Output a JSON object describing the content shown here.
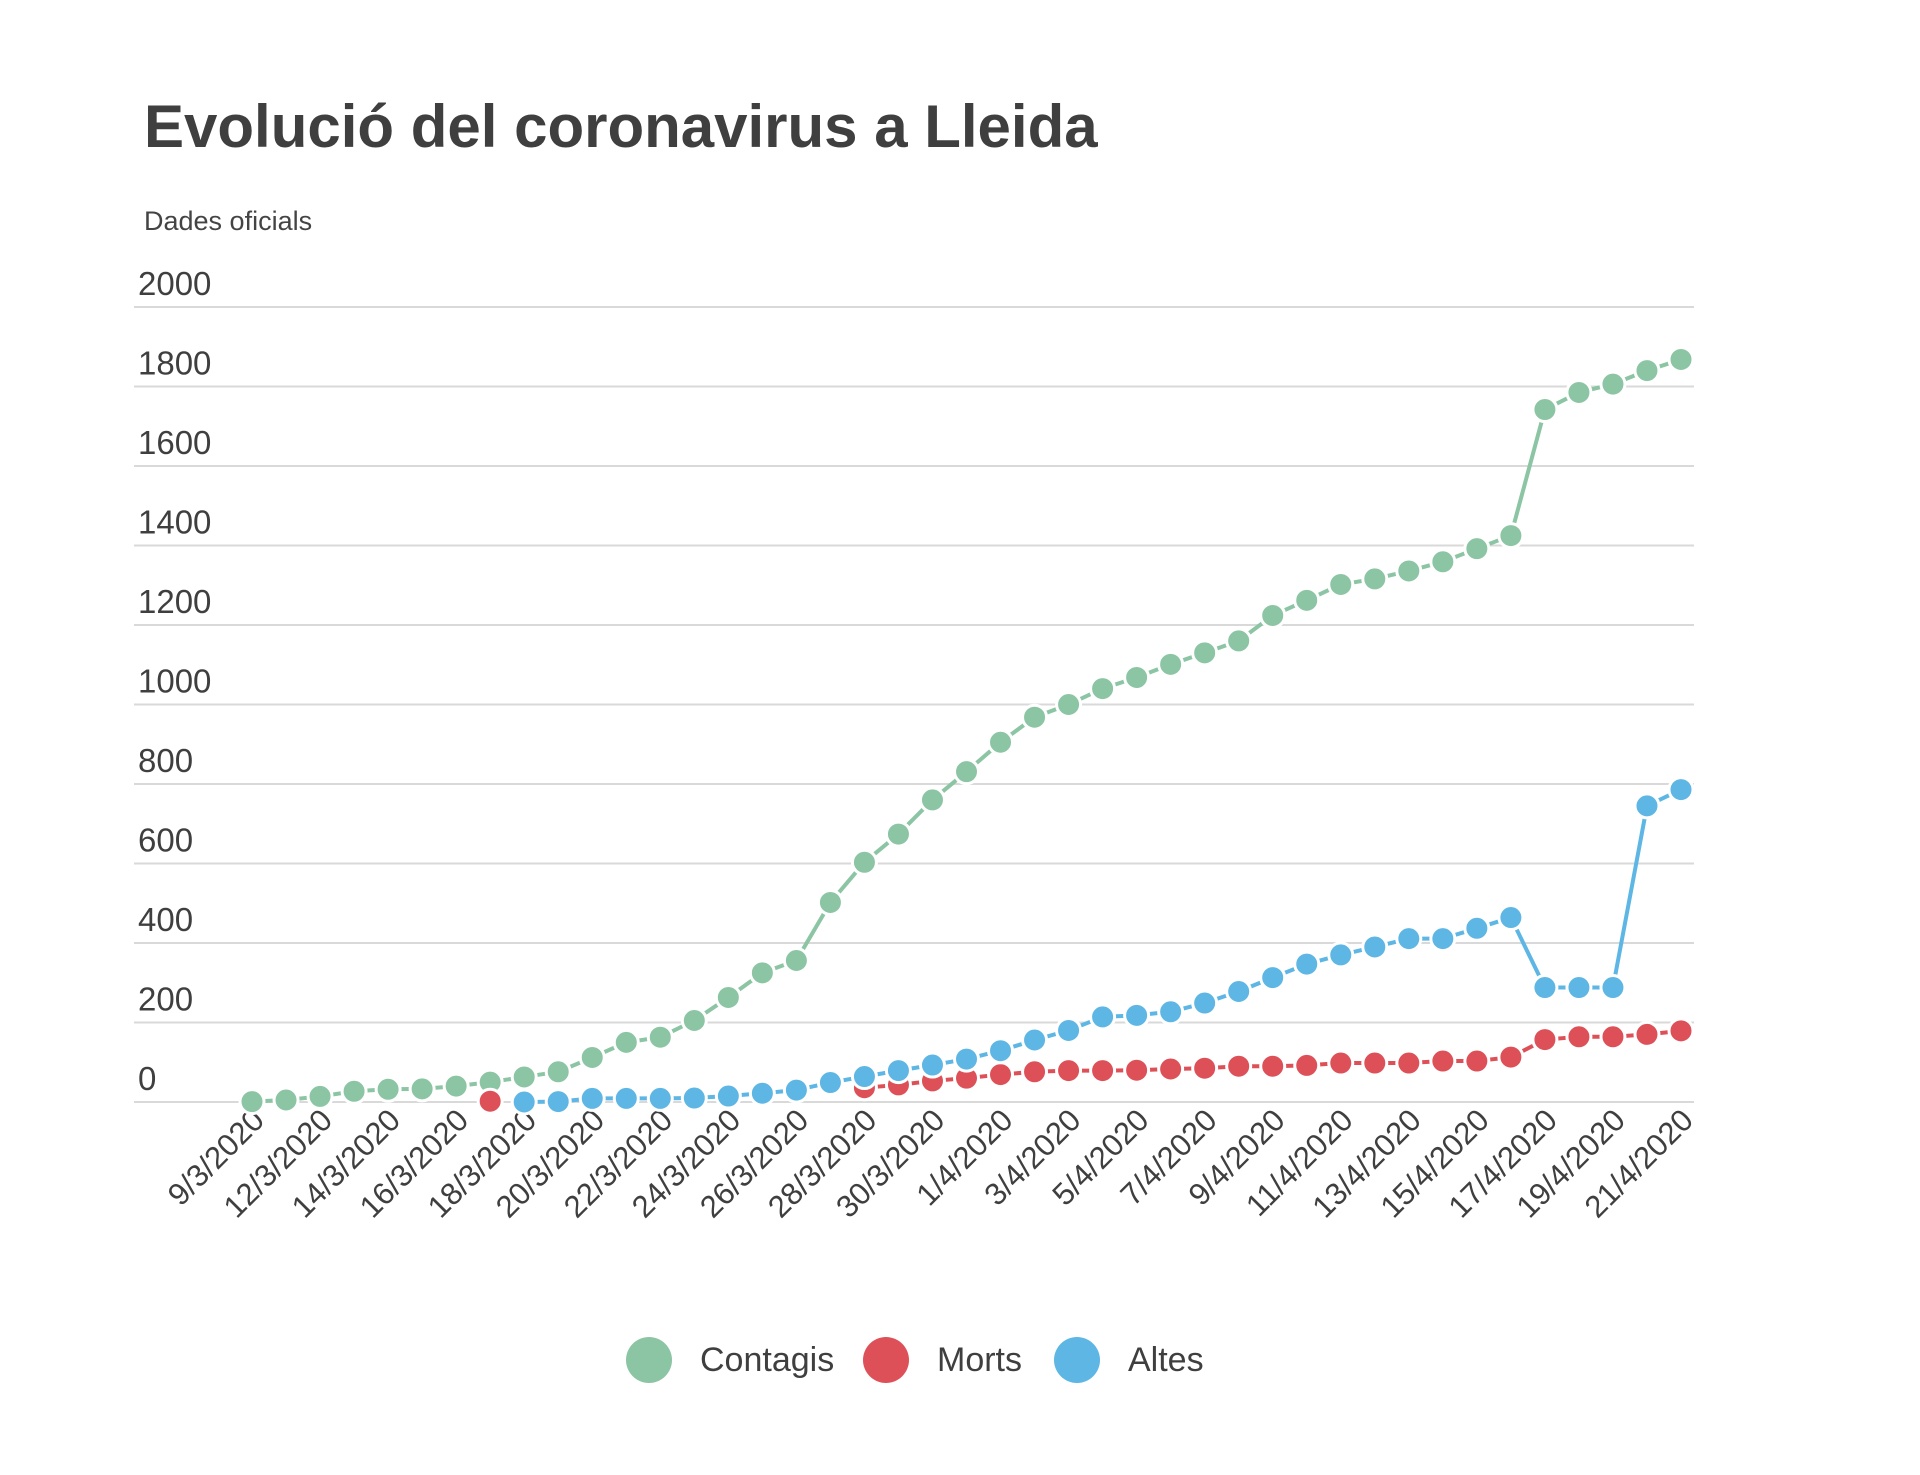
{
  "title": "Evolució del coronavirus a Lleida",
  "subtitle": "Dades oficials",
  "colors": {
    "contagis": "#8cc5a3",
    "morts": "#de5057",
    "altes": "#5eb6e4",
    "grid": "#d9d9d9",
    "text": "#3f3f3f"
  },
  "chart_data": {
    "type": "line",
    "ylim": [
      0,
      2000
    ],
    "y_ticks": [
      "0",
      "200",
      "400",
      "600",
      "800",
      "1000",
      "1200",
      "1400",
      "1600",
      "1800",
      "2000"
    ],
    "x": [
      "9/3/2020",
      "11/3/2020",
      "12/3/2020",
      "13/3/2020",
      "14/3/2020",
      "15/3/2020",
      "16/3/2020",
      "17/3/2020",
      "18/3/2020",
      "19/3/2020",
      "20/3/2020",
      "21/3/2020",
      "22/3/2020",
      "23/3/2020",
      "24/3/2020",
      "25/3/2020",
      "26/3/2020",
      "27/3/2020",
      "28/3/2020",
      "29/3/2020",
      "30/3/2020",
      "31/3/2020",
      "1/4/2020",
      "2/4/2020",
      "3/4/2020",
      "4/4/2020",
      "5/4/2020",
      "6/4/2020",
      "7/4/2020",
      "8/4/2020",
      "9/4/2020",
      "10/4/2020",
      "11/4/2020",
      "12/4/2020",
      "13/4/2020",
      "14/4/2020",
      "15/4/2020",
      "16/4/2020",
      "17/4/2020",
      "18/4/2020",
      "19/4/2020",
      "20/4/2020",
      "21/4/2020"
    ],
    "x_tick_labels": [
      "9/3/2020",
      "12/3/2020",
      "14/3/2020",
      "16/3/2020",
      "18/3/2020",
      "20/3/2020",
      "22/3/2020",
      "24/3/2020",
      "26/3/2020",
      "28/3/2020",
      "30/3/2020",
      "1/4/2020",
      "3/4/2020",
      "5/4/2020",
      "7/4/2020",
      "9/4/2020",
      "11/4/2020",
      "13/4/2020",
      "15/4/2020",
      "17/4/2020",
      "19/4/2020",
      "21/4/2020"
    ],
    "series": [
      {
        "name": "Contagis",
        "color": "#8cc5a3",
        "values": [
          1,
          5,
          14,
          27,
          32,
          33,
          40,
          50,
          63,
          76,
          112,
          150,
          163,
          205,
          263,
          325,
          356,
          502,
          603,
          674,
          760,
          831,
          905,
          968,
          1000,
          1040,
          1068,
          1101,
          1130,
          1160,
          1224,
          1262,
          1302,
          1316,
          1336,
          1359,
          1392,
          1425,
          1742,
          1785,
          1806,
          1840,
          1868
        ]
      },
      {
        "name": "Morts",
        "color": "#de5057",
        "values": [
          null,
          null,
          null,
          null,
          null,
          null,
          null,
          2,
          null,
          null,
          null,
          null,
          null,
          null,
          null,
          null,
          null,
          null,
          36,
          43,
          53,
          60,
          69,
          76,
          79,
          79,
          80,
          83,
          85,
          90,
          90,
          92,
          98,
          98,
          98,
          103,
          103,
          113,
          157,
          164,
          164,
          170,
          179
        ]
      },
      {
        "name": "Altes",
        "color": "#5eb6e4",
        "values": [
          null,
          null,
          null,
          null,
          null,
          null,
          null,
          null,
          0,
          1,
          9,
          9,
          9,
          10,
          15,
          22,
          30,
          49,
          64,
          79,
          93,
          108,
          129,
          156,
          180,
          214,
          218,
          227,
          249,
          278,
          313,
          347,
          370,
          390,
          411,
          411,
          437,
          464,
          288,
          288,
          288,
          745,
          786
        ]
      }
    ],
    "legend_position": "bottom",
    "grid": true
  }
}
